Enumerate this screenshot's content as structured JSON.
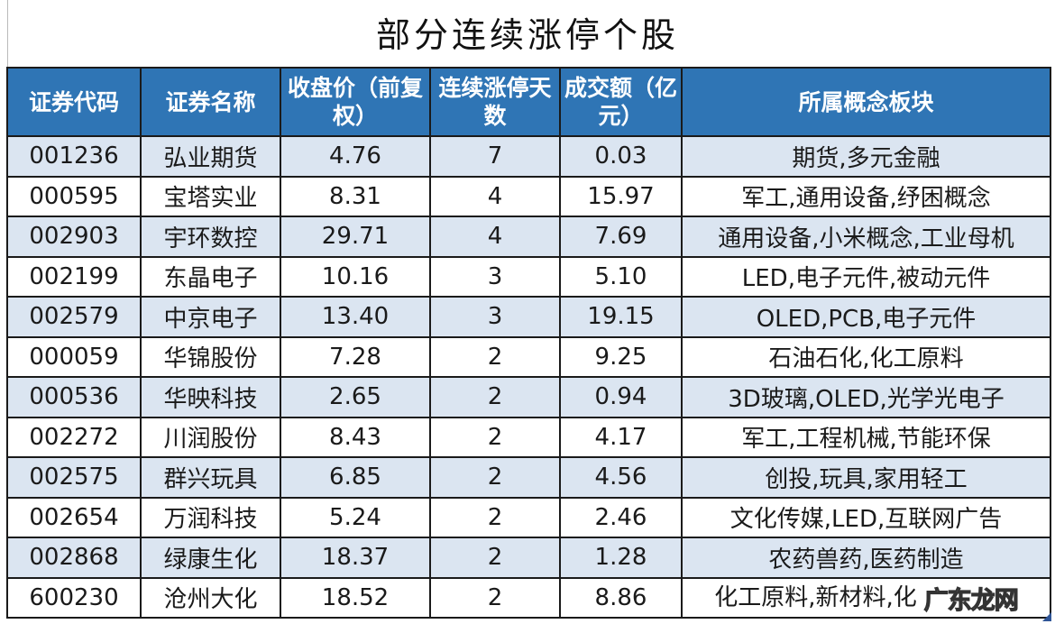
{
  "title": "部分连续涨停个股",
  "headers": [
    "证券代码",
    "证券名称",
    "收盘价（前复权）",
    "连续涨停天数",
    "成交额（亿元）",
    "所属概念板块"
  ],
  "rows": [
    [
      "001236",
      "弘业期货",
      "4.76",
      "7",
      "0.03",
      "期货,多元金融"
    ],
    [
      "000595",
      "宝塔实业",
      "8.31",
      "4",
      "15.97",
      "军工,通用设备,纾困概念"
    ],
    [
      "002903",
      "宇环数控",
      "29.71",
      "4",
      "7.69",
      "通用设备,小米概念,工业母机"
    ],
    [
      "002199",
      "东晶电子",
      "10.16",
      "3",
      "5.10",
      "LED,电子元件,被动元件"
    ],
    [
      "002579",
      "中京电子",
      "13.40",
      "3",
      "19.15",
      "OLED,PCB,电子元件"
    ],
    [
      "000059",
      "华锦股份",
      "7.28",
      "2",
      "9.25",
      "石油石化,化工原料"
    ],
    [
      "000536",
      "华映科技",
      "2.65",
      "2",
      "0.94",
      "3D玻璃,OLED,光学光电子"
    ],
    [
      "002272",
      "川润股份",
      "8.43",
      "2",
      "4.17",
      "军工,工程机械,节能环保"
    ],
    [
      "002575",
      "群兴玩具",
      "6.85",
      "2",
      "4.56",
      "创投,玩具,家用轻工"
    ],
    [
      "002654",
      "万润科技",
      "5.24",
      "2",
      "2.46",
      "文化传媒,LED,互联网广告"
    ],
    [
      "002868",
      "绿康生化",
      "18.37",
      "2",
      "1.28",
      "农药兽药,医药制造"
    ],
    [
      "600230",
      "沧州大化",
      "18.52",
      "2",
      "8.86",
      "化工原料,新材料,化"
    ]
  ],
  "watermark": "广东龙网",
  "colors": {
    "header_bg": "#2f75b5",
    "odd_row_bg": "#dbe5f1",
    "even_row_bg": "#ffffff"
  }
}
